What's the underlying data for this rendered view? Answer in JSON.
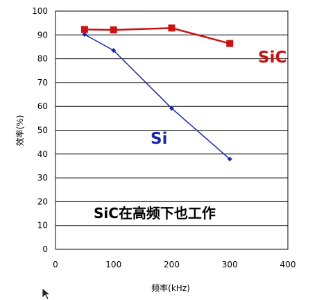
{
  "chart_data": {
    "type": "line",
    "title": "",
    "xlabel": "频率(kHz)",
    "ylabel": "效率(%)",
    "xlim": [
      0,
      400
    ],
    "ylim": [
      0,
      100
    ],
    "xticks": [
      0,
      100,
      200,
      300,
      400
    ],
    "yticks": [
      0,
      10,
      20,
      30,
      40,
      50,
      60,
      70,
      80,
      90,
      100
    ],
    "grid": "horizontal",
    "series": [
      {
        "name": "SiC",
        "color": "#cc1111",
        "marker": "square",
        "x": [
          50,
          100,
          200,
          300
        ],
        "y": [
          92.3,
          92.1,
          92.9,
          86.4
        ]
      },
      {
        "name": "Si",
        "color": "#1a2aa6",
        "marker": "diamond",
        "x": [
          50,
          100,
          200,
          300
        ],
        "y": [
          90.2,
          83.5,
          59.2,
          37.9
        ]
      }
    ],
    "annotations": [
      "SiC在高频下也工作"
    ]
  }
}
